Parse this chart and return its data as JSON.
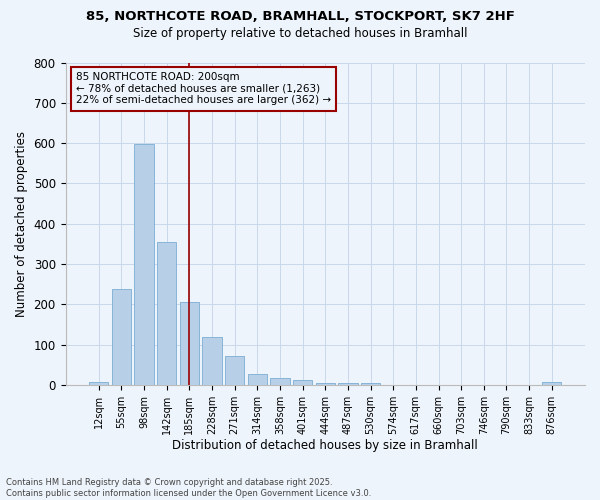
{
  "title_line1": "85, NORTHCOTE ROAD, BRAMHALL, STOCKPORT, SK7 2HF",
  "title_line2": "Size of property relative to detached houses in Bramhall",
  "xlabel": "Distribution of detached houses by size in Bramhall",
  "ylabel": "Number of detached properties",
  "bar_labels": [
    "12sqm",
    "55sqm",
    "98sqm",
    "142sqm",
    "185sqm",
    "228sqm",
    "271sqm",
    "314sqm",
    "358sqm",
    "401sqm",
    "444sqm",
    "487sqm",
    "530sqm",
    "574sqm",
    "617sqm",
    "660sqm",
    "703sqm",
    "746sqm",
    "790sqm",
    "833sqm",
    "876sqm"
  ],
  "bar_values": [
    8,
    238,
    598,
    355,
    205,
    118,
    72,
    28,
    18,
    12,
    4,
    5,
    5,
    0,
    0,
    0,
    0,
    0,
    0,
    0,
    8
  ],
  "bar_color": "#b8cfe8",
  "bar_edge_color": "#7aadd4",
  "grid_color": "#c8d8ea",
  "background_color": "#eef4fb",
  "annotation_line1": "85 NORTHCOTE ROAD: 200sqm",
  "annotation_line2": "← 78% of detached houses are smaller (1,263)",
  "annotation_line3": "22% of semi-detached houses are larger (362) →",
  "vline_color": "#990000",
  "box_edge_color": "#990000",
  "ylim": [
    0,
    800
  ],
  "yticks": [
    0,
    100,
    200,
    300,
    400,
    500,
    600,
    700,
    800
  ],
  "footnote": "Contains HM Land Registry data © Crown copyright and database right 2025.\nContains public sector information licensed under the Open Government Licence v3.0."
}
